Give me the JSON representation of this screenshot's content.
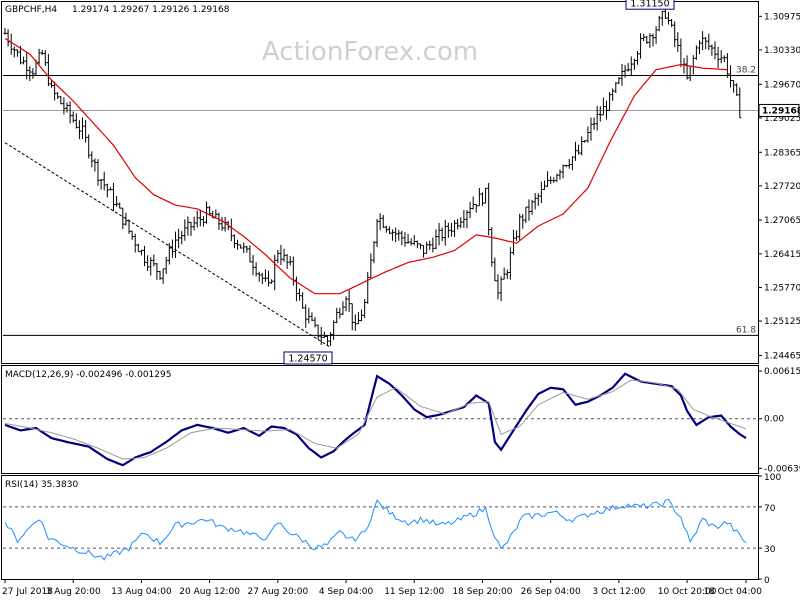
{
  "header": {
    "symbol_timeframe": "GBPCHF,H4",
    "ohlc": "1.29174 1.29267 1.29126 1.29168"
  },
  "watermark": "ActionForex.com",
  "colors": {
    "candle": "#000000",
    "sma": "#e00000",
    "macd_line": "#000080",
    "macd_signal": "#9a9a9a",
    "rsi": "#1e8fff",
    "level_line": "#000000",
    "trend_line": "#000000"
  },
  "chart_data": [
    {
      "type": "candlestick",
      "panel": "price",
      "ylim": [
        1.2432,
        1.3125
      ],
      "y_ticks": [
        "1.30975",
        "1.30330",
        "1.29670",
        "1.29025",
        "1.28365",
        "1.27720",
        "1.27065",
        "1.26415",
        "1.25770",
        "1.25125",
        "1.24465"
      ],
      "y_tick_values": [
        1.30975,
        1.3033,
        1.2967,
        1.29025,
        1.28365,
        1.2772,
        1.27065,
        1.26415,
        1.2577,
        1.25125,
        1.24465
      ],
      "current_price": 1.29168,
      "current_price_label": "1.29168",
      "levels": [
        {
          "label": "38.2",
          "value": 1.2984
        },
        {
          "label": "61.8",
          "value": 1.2485
        }
      ],
      "annotations": [
        {
          "label": "1.31150",
          "value": 1.3115
        },
        {
          "label": "1.24570",
          "value": 1.2457
        }
      ],
      "trendline": {
        "start": [
          0,
          1.2855
        ],
        "end": [
          105,
          1.2462
        ]
      },
      "sma_anchors": [
        [
          0,
          1.3055
        ],
        [
          8,
          1.3025
        ],
        [
          15,
          1.2975
        ],
        [
          22,
          1.2935
        ],
        [
          35,
          1.285
        ],
        [
          42,
          1.2788
        ],
        [
          48,
          1.2755
        ],
        [
          55,
          1.2735
        ],
        [
          62,
          1.2728
        ],
        [
          70,
          1.2705
        ],
        [
          77,
          1.2675
        ],
        [
          84,
          1.264
        ],
        [
          92,
          1.2595
        ],
        [
          100,
          1.2565
        ],
        [
          108,
          1.2565
        ],
        [
          115,
          1.2585
        ],
        [
          122,
          1.2605
        ],
        [
          130,
          1.2625
        ],
        [
          138,
          1.2635
        ],
        [
          145,
          1.2648
        ],
        [
          152,
          1.2678
        ],
        [
          158,
          1.2672
        ],
        [
          165,
          1.2662
        ],
        [
          172,
          1.2695
        ],
        [
          180,
          1.2718
        ],
        [
          188,
          1.2768
        ],
        [
          195,
          1.2855
        ],
        [
          203,
          1.2945
        ],
        [
          210,
          1.2995
        ],
        [
          218,
          1.3005
        ],
        [
          225,
          1.2998
        ],
        [
          233,
          1.2995
        ]
      ],
      "price_anchors": [
        [
          0,
          1.3065
        ],
        [
          5,
          1.3015
        ],
        [
          9,
          1.2995
        ],
        [
          12,
          1.3025
        ],
        [
          15,
          1.2955
        ],
        [
          20,
          1.2915
        ],
        [
          25,
          1.2875
        ],
        [
          30,
          1.2795
        ],
        [
          35,
          1.2745
        ],
        [
          40,
          1.2685
        ],
        [
          45,
          1.2635
        ],
        [
          50,
          1.2605
        ],
        [
          55,
          1.2668
        ],
        [
          60,
          1.2695
        ],
        [
          65,
          1.2718
        ],
        [
          70,
          1.2698
        ],
        [
          75,
          1.2665
        ],
        [
          80,
          1.2625
        ],
        [
          85,
          1.2575
        ],
        [
          88,
          1.2648
        ],
        [
          92,
          1.2615
        ],
        [
          96,
          1.2535
        ],
        [
          100,
          1.2495
        ],
        [
          104,
          1.2475
        ],
        [
          107,
          1.2525
        ],
        [
          110,
          1.2565
        ],
        [
          113,
          1.2495
        ],
        [
          116,
          1.2545
        ],
        [
          118,
          1.2625
        ],
        [
          120,
          1.2715
        ],
        [
          125,
          1.2685
        ],
        [
          130,
          1.2665
        ],
        [
          135,
          1.2648
        ],
        [
          140,
          1.2675
        ],
        [
          145,
          1.2698
        ],
        [
          150,
          1.2735
        ],
        [
          155,
          1.2755
        ],
        [
          157,
          1.2635
        ],
        [
          159,
          1.2565
        ],
        [
          162,
          1.2615
        ],
        [
          166,
          1.2705
        ],
        [
          170,
          1.2735
        ],
        [
          175,
          1.2775
        ],
        [
          180,
          1.2815
        ],
        [
          185,
          1.2835
        ],
        [
          190,
          1.2895
        ],
        [
          195,
          1.2935
        ],
        [
          200,
          1.2995
        ],
        [
          205,
          1.3045
        ],
        [
          210,
          1.3075
        ],
        [
          213,
          1.3105
        ],
        [
          217,
          1.3035
        ],
        [
          220,
          1.2975
        ],
        [
          224,
          1.3055
        ],
        [
          228,
          1.3035
        ],
        [
          232,
          1.3015
        ],
        [
          235,
          1.2955
        ],
        [
          237,
          1.2915
        ]
      ]
    },
    {
      "type": "line",
      "panel": "macd",
      "title": "MACD(12,26,9) -0.002496 -0.001295",
      "ylim": [
        -0.007,
        0.0068
      ],
      "y_ticks": [
        "0.006152",
        "0.00",
        "-0.006396"
      ],
      "y_tick_values": [
        0.006152,
        0.0,
        -0.006396
      ],
      "series": [
        {
          "role": "macd",
          "points": [
            [
              0,
              -0.0008
            ],
            [
              5,
              -0.0015
            ],
            [
              10,
              -0.0012
            ],
            [
              15,
              -0.0025
            ],
            [
              20,
              -0.003
            ],
            [
              27,
              -0.0036
            ],
            [
              33,
              -0.0052
            ],
            [
              38,
              -0.006
            ],
            [
              42,
              -0.005
            ],
            [
              47,
              -0.0043
            ],
            [
              52,
              -0.003
            ],
            [
              57,
              -0.0015
            ],
            [
              62,
              -0.0008
            ],
            [
              67,
              -0.0012
            ],
            [
              72,
              -0.0018
            ],
            [
              77,
              -0.0012
            ],
            [
              82,
              -0.0022
            ],
            [
              86,
              -0.001
            ],
            [
              90,
              -0.0012
            ],
            [
              94,
              -0.002
            ],
            [
              98,
              -0.0038
            ],
            [
              102,
              -0.005
            ],
            [
              106,
              -0.0042
            ],
            [
              109,
              -0.003
            ],
            [
              112,
              -0.002
            ],
            [
              116,
              -0.0008
            ],
            [
              120,
              0.0055
            ],
            [
              124,
              0.0045
            ],
            [
              128,
              0.003
            ],
            [
              132,
              0.0012
            ],
            [
              136,
              0.0002
            ],
            [
              140,
              0.0005
            ],
            [
              144,
              0.001
            ],
            [
              148,
              0.0015
            ],
            [
              152,
              0.003
            ],
            [
              156,
              0.002
            ],
            [
              158,
              -0.003
            ],
            [
              160,
              -0.004
            ],
            [
              164,
              -0.0015
            ],
            [
              168,
              0.001
            ],
            [
              172,
              0.0032
            ],
            [
              176,
              0.004
            ],
            [
              180,
              0.0038
            ],
            [
              184,
              0.0018
            ],
            [
              188,
              0.0022
            ],
            [
              192,
              0.003
            ],
            [
              196,
              0.004
            ],
            [
              200,
              0.0058
            ],
            [
              205,
              0.0048
            ],
            [
              210,
              0.0045
            ],
            [
              215,
              0.0042
            ],
            [
              218,
              0.003
            ],
            [
              220,
              0.001
            ],
            [
              223,
              -0.0008
            ],
            [
              227,
              0.0002
            ],
            [
              231,
              0.0004
            ],
            [
              234,
              -0.001
            ],
            [
              237,
              -0.002
            ],
            [
              239,
              -0.0025
            ]
          ]
        },
        {
          "role": "signal",
          "points": [
            [
              0,
              -0.0006
            ],
            [
              8,
              -0.0012
            ],
            [
              15,
              -0.0018
            ],
            [
              22,
              -0.0026
            ],
            [
              30,
              -0.0038
            ],
            [
              38,
              -0.0052
            ],
            [
              45,
              -0.005
            ],
            [
              52,
              -0.0038
            ],
            [
              60,
              -0.0018
            ],
            [
              68,
              -0.0012
            ],
            [
              76,
              -0.0014
            ],
            [
              84,
              -0.0016
            ],
            [
              92,
              -0.0014
            ],
            [
              100,
              -0.0032
            ],
            [
              107,
              -0.0038
            ],
            [
              114,
              -0.002
            ],
            [
              120,
              0.0028
            ],
            [
              126,
              0.004
            ],
            [
              134,
              0.0016
            ],
            [
              142,
              0.0006
            ],
            [
              150,
              0.002
            ],
            [
              156,
              0.0022
            ],
            [
              160,
              -0.002
            ],
            [
              166,
              -0.001
            ],
            [
              172,
              0.0018
            ],
            [
              180,
              0.0034
            ],
            [
              188,
              0.0025
            ],
            [
              196,
              0.0035
            ],
            [
              202,
              0.005
            ],
            [
              210,
              0.0046
            ],
            [
              217,
              0.0038
            ],
            [
              222,
              0.0012
            ],
            [
              228,
              0.0002
            ],
            [
              234,
              -0.0006
            ],
            [
              239,
              -0.0013
            ]
          ]
        }
      ]
    },
    {
      "type": "line",
      "panel": "rsi",
      "title": "RSI(14) 35.3830",
      "ylim": [
        0,
        100
      ],
      "y_ticks": [
        "100",
        "70",
        "30",
        "0"
      ],
      "y_tick_values": [
        100,
        70,
        30,
        0
      ],
      "levels": [
        70,
        30
      ],
      "series": [
        {
          "role": "rsi",
          "points": [
            [
              0,
              55
            ],
            [
              4,
              38
            ],
            [
              8,
              50
            ],
            [
              11,
              60
            ],
            [
              14,
              40
            ],
            [
              18,
              35
            ],
            [
              22,
              30
            ],
            [
              27,
              25
            ],
            [
              32,
              20
            ],
            [
              36,
              25
            ],
            [
              40,
              30
            ],
            [
              45,
              45
            ],
            [
              50,
              35
            ],
            [
              55,
              52
            ],
            [
              60,
              55
            ],
            [
              65,
              58
            ],
            [
              70,
              50
            ],
            [
              75,
              48
            ],
            [
              80,
              42
            ],
            [
              85,
              40
            ],
            [
              88,
              55
            ],
            [
              92,
              45
            ],
            [
              96,
              38
            ],
            [
              100,
              30
            ],
            [
              104,
              33
            ],
            [
              108,
              45
            ],
            [
              112,
              38
            ],
            [
              116,
              45
            ],
            [
              120,
              75
            ],
            [
              125,
              62
            ],
            [
              130,
              55
            ],
            [
              135,
              58
            ],
            [
              140,
              52
            ],
            [
              145,
              55
            ],
            [
              150,
              62
            ],
            [
              155,
              68
            ],
            [
              158,
              42
            ],
            [
              160,
              28
            ],
            [
              163,
              40
            ],
            [
              167,
              60
            ],
            [
              172,
              62
            ],
            [
              177,
              65
            ],
            [
              182,
              58
            ],
            [
              186,
              60
            ],
            [
              190,
              65
            ],
            [
              195,
              68
            ],
            [
              200,
              72
            ],
            [
              205,
              70
            ],
            [
              210,
              72
            ],
            [
              214,
              75
            ],
            [
              218,
              60
            ],
            [
              221,
              35
            ],
            [
              225,
              58
            ],
            [
              229,
              50
            ],
            [
              233,
              55
            ],
            [
              236,
              45
            ],
            [
              239,
              35
            ]
          ]
        }
      ]
    }
  ],
  "x_axis": {
    "labels": [
      "27 Jul 2018",
      "3 Aug 20:00",
      "13 Aug 04:00",
      "20 Aug 12:00",
      "27 Aug 20:00",
      "4 Sep 04:00",
      "11 Sep 12:00",
      "18 Sep 20:00",
      "26 Sep 04:00",
      "3 Oct 12:00",
      "10 Oct 20:00",
      "18 Oct 04:00"
    ],
    "label_bars": [
      0,
      22,
      44,
      66,
      88,
      110,
      132,
      154,
      176,
      198,
      220,
      239
    ]
  }
}
